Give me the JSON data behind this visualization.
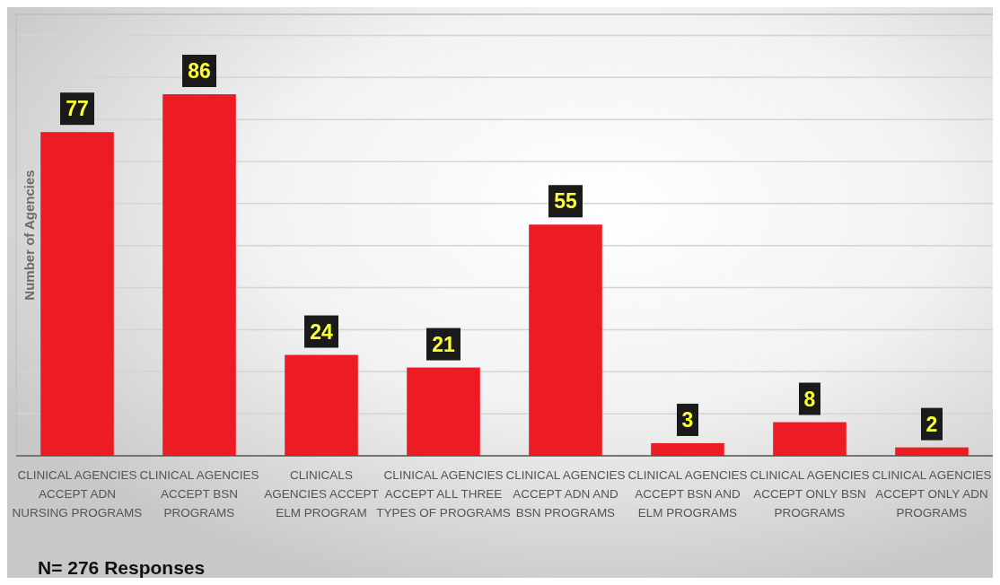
{
  "chart_data": {
    "type": "bar",
    "ylabel": "Number of Agencies",
    "categories": [
      "CLINICAL AGENCIES ACCEPT ADN NURSING PROGRAMS",
      "CLINICAL AGENCIES ACCEPT BSN PROGRAMS",
      "CLINICALS AGENCIES ACCEPT ELM PROGRAM",
      "CLINICAL AGENCIES ACCEPT ALL THREE TYPES OF PROGRAMS",
      "CLINICAL AGENCIES ACCEPT ADN AND BSN PROGRAMS",
      "CLINICAL AGENCIES ACCEPT BSN AND ELM PROGRAMS",
      "CLINICAL AGENCIES ACCEPT ONLY BSN PROGRAMS",
      "CLINICAL AGENCIES ACCEPT ONLY ADN PROGRAMS"
    ],
    "values": [
      77,
      86,
      24,
      21,
      55,
      3,
      8,
      2
    ],
    "color": "#ed1c24",
    "ylim": [
      0,
      105
    ],
    "yticks": [
      {
        "value": 0,
        "label": null
      },
      {
        "value": 10,
        "label": null
      },
      {
        "value": 20,
        "label": null
      },
      {
        "value": 30,
        "label": null
      },
      {
        "value": 40,
        "label": null
      },
      {
        "value": 50,
        "label": null
      },
      {
        "value": 60,
        "label": null
      },
      {
        "value": 70,
        "label": null
      },
      {
        "value": 80,
        "label": null
      },
      {
        "value": 90,
        "label": null
      },
      {
        "value": 100,
        "label": null
      }
    ],
    "grid": "y",
    "data_labels": true,
    "annotations": [
      "N= 276 Responses"
    ]
  }
}
